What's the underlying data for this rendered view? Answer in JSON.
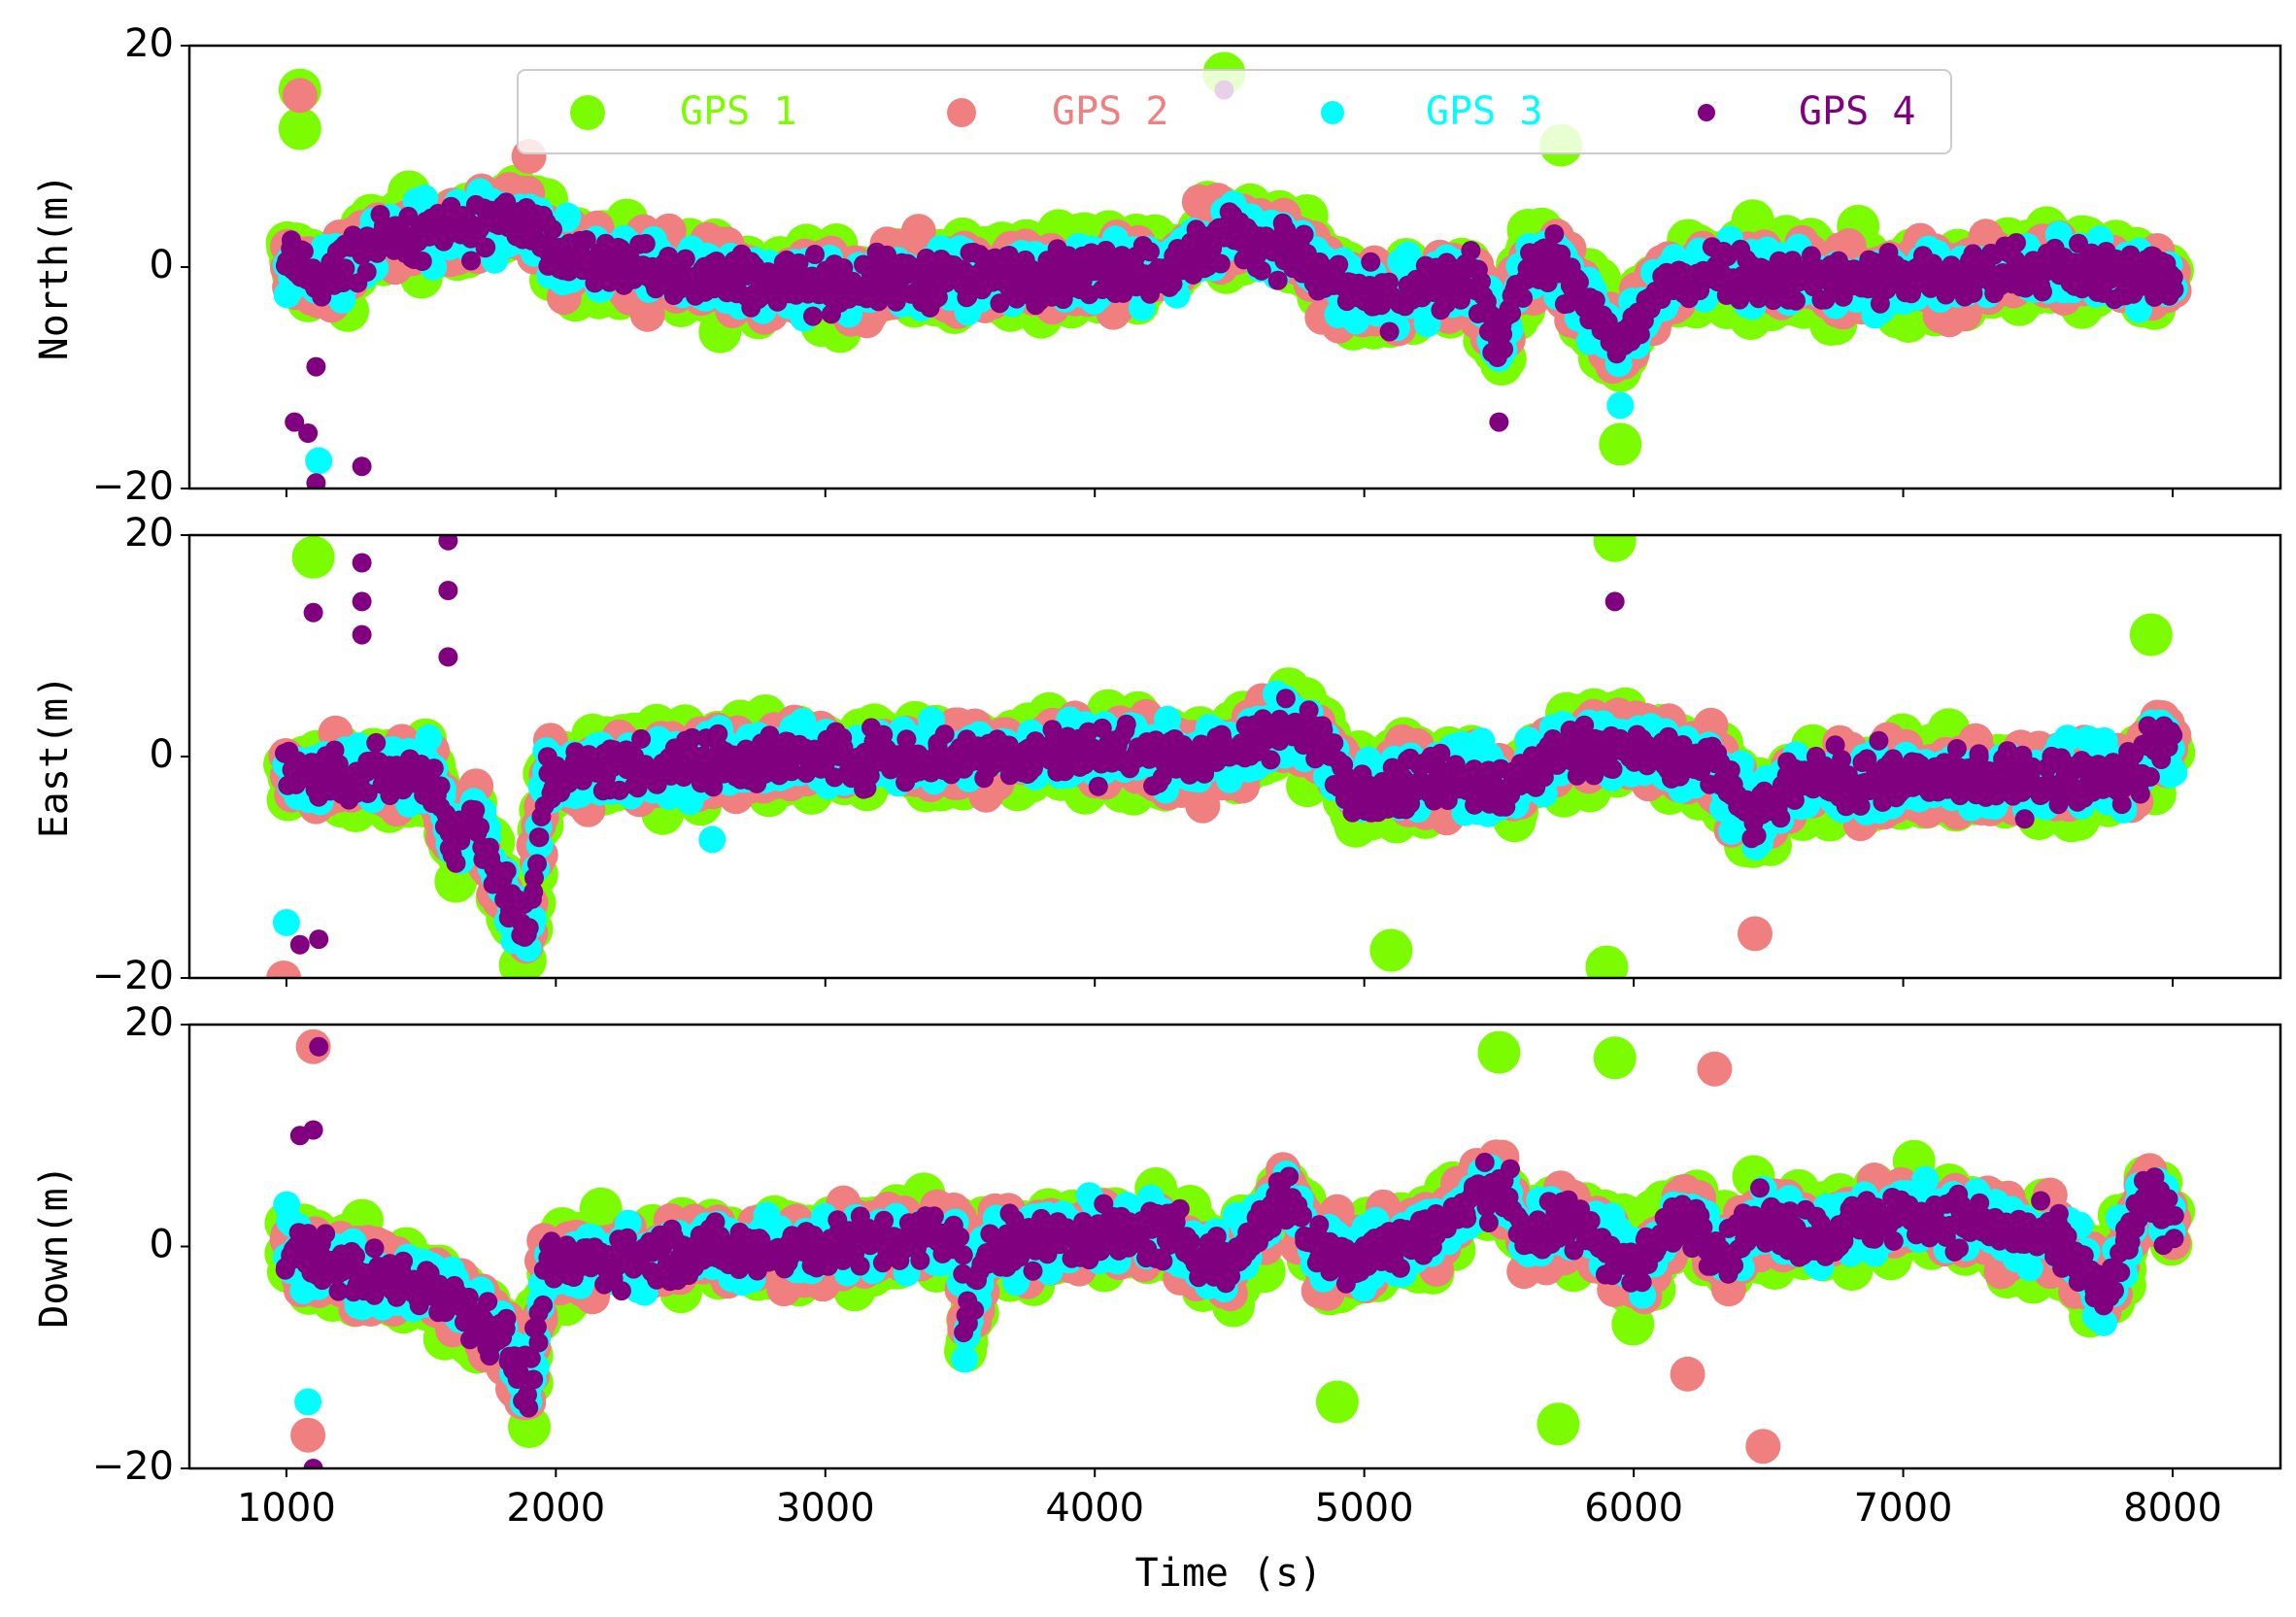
{
  "chart_data": {
    "type": "scatter",
    "xlabel": "Time (s)",
    "xlim": [
      640,
      8400
    ],
    "x_ticks": [
      1000,
      2000,
      3000,
      4000,
      5000,
      6000,
      7000,
      8000
    ],
    "x_tick_labels": [
      "1000",
      "2000",
      "3000",
      "4000",
      "5000",
      "6000",
      "7000",
      "8000"
    ],
    "ylim": [
      -20,
      20
    ],
    "y_ticks": [
      -20,
      0,
      20
    ],
    "y_tick_labels": [
      "−20",
      "0",
      "20"
    ],
    "legend_position": "top-center",
    "series": [
      {
        "name": "GPS 1",
        "color": "#7cfc00",
        "marker_scale": "largest"
      },
      {
        "name": "GPS 2",
        "color": "#f08080",
        "marker_scale": "large"
      },
      {
        "name": "GPS 3",
        "color": "#00ffff",
        "marker_scale": "medium"
      },
      {
        "name": "GPS 4",
        "color": "#800080",
        "marker_scale": "small"
      }
    ],
    "x_range_of_data": [
      1000,
      8000
    ],
    "panels": [
      {
        "ylabel": "North(m)",
        "trend": [
          [
            1000,
            0.5
          ],
          [
            1150,
            -1
          ],
          [
            1300,
            2
          ],
          [
            1450,
            3
          ],
          [
            1600,
            3
          ],
          [
            1800,
            4
          ],
          [
            1900,
            4.5
          ],
          [
            2000,
            1
          ],
          [
            2300,
            0
          ],
          [
            2600,
            -1
          ],
          [
            3000,
            -1.5
          ],
          [
            3500,
            -1
          ],
          [
            4000,
            -0.5
          ],
          [
            4300,
            0
          ],
          [
            4500,
            3
          ],
          [
            4700,
            2
          ],
          [
            4850,
            -1
          ],
          [
            5050,
            -3
          ],
          [
            5250,
            -2
          ],
          [
            5400,
            -1
          ],
          [
            5500,
            -7
          ],
          [
            5580,
            -1
          ],
          [
            5700,
            1
          ],
          [
            5800,
            -3
          ],
          [
            5950,
            -7
          ],
          [
            6100,
            -2
          ],
          [
            6300,
            0
          ],
          [
            6500,
            -1
          ],
          [
            6800,
            -1
          ],
          [
            7200,
            -1
          ],
          [
            7500,
            0
          ],
          [
            8000,
            -1
          ]
        ],
        "spread": 3.5,
        "outliers": [
          {
            "x": 1050,
            "y": 16,
            "series": "GPS 1"
          },
          {
            "x": 1050,
            "y": 15.5,
            "series": "GPS 2"
          },
          {
            "x": 1050,
            "y": 12.5,
            "series": "GPS 1"
          },
          {
            "x": 1030,
            "y": -14,
            "series": "GPS 4"
          },
          {
            "x": 1080,
            "y": -15,
            "series": "GPS 4"
          },
          {
            "x": 1110,
            "y": -9,
            "series": "GPS 4"
          },
          {
            "x": 1120,
            "y": -17.5,
            "series": "GPS 3"
          },
          {
            "x": 1110,
            "y": -19.5,
            "series": "GPS 4"
          },
          {
            "x": 1280,
            "y": -18,
            "series": "GPS 4"
          },
          {
            "x": 4480,
            "y": 17.5,
            "series": "GPS 1"
          },
          {
            "x": 4480,
            "y": 16,
            "series": "GPS 4"
          },
          {
            "x": 5730,
            "y": 11,
            "series": "GPS 1"
          },
          {
            "x": 5500,
            "y": -14,
            "series": "GPS 4"
          },
          {
            "x": 5950,
            "y": -16,
            "series": "GPS 1"
          },
          {
            "x": 5950,
            "y": -12.5,
            "series": "GPS 3"
          },
          {
            "x": 1900,
            "y": 10,
            "series": "GPS 2"
          }
        ]
      },
      {
        "ylabel": "East(m)",
        "trend": [
          [
            1000,
            -1
          ],
          [
            1200,
            -2
          ],
          [
            1400,
            -1.5
          ],
          [
            1550,
            -2
          ],
          [
            1620,
            -8
          ],
          [
            1700,
            -5
          ],
          [
            1800,
            -12
          ],
          [
            1900,
            -16
          ],
          [
            1960,
            -2
          ],
          [
            2200,
            -1
          ],
          [
            2500,
            -0.5
          ],
          [
            3000,
            0
          ],
          [
            3500,
            0
          ],
          [
            4000,
            0.5
          ],
          [
            4500,
            0
          ],
          [
            4700,
            3
          ],
          [
            4850,
            1
          ],
          [
            4950,
            -3
          ],
          [
            5200,
            -2
          ],
          [
            5400,
            -2
          ],
          [
            5550,
            -3
          ],
          [
            5700,
            0
          ],
          [
            5900,
            1
          ],
          [
            6100,
            0
          ],
          [
            6300,
            -1
          ],
          [
            6450,
            -6
          ],
          [
            6600,
            -2
          ],
          [
            6800,
            -2
          ],
          [
            7200,
            -2
          ],
          [
            7600,
            -2
          ],
          [
            7850,
            -2
          ],
          [
            7950,
            2
          ],
          [
            8000,
            1
          ]
        ],
        "spread": 3.5,
        "outliers": [
          {
            "x": 1100,
            "y": 18,
            "series": "GPS 1"
          },
          {
            "x": 1100,
            "y": 13,
            "series": "GPS 4"
          },
          {
            "x": 1280,
            "y": 17.5,
            "series": "GPS 4"
          },
          {
            "x": 1280,
            "y": 14,
            "series": "GPS 4"
          },
          {
            "x": 1280,
            "y": 11,
            "series": "GPS 4"
          },
          {
            "x": 1600,
            "y": 19.5,
            "series": "GPS 4"
          },
          {
            "x": 1600,
            "y": 15,
            "series": "GPS 4"
          },
          {
            "x": 1600,
            "y": 9,
            "series": "GPS 4"
          },
          {
            "x": 1000,
            "y": -15,
            "series": "GPS 3"
          },
          {
            "x": 990,
            "y": -20,
            "series": "GPS 2"
          },
          {
            "x": 1050,
            "y": -17,
            "series": "GPS 4"
          },
          {
            "x": 1120,
            "y": -16.5,
            "series": "GPS 4"
          },
          {
            "x": 5100,
            "y": -17.5,
            "series": "GPS 1"
          },
          {
            "x": 5900,
            "y": -19,
            "series": "GPS 1"
          },
          {
            "x": 5930,
            "y": 19.5,
            "series": "GPS 1"
          },
          {
            "x": 5930,
            "y": 14,
            "series": "GPS 4"
          },
          {
            "x": 6450,
            "y": -16,
            "series": "GPS 2"
          },
          {
            "x": 7920,
            "y": 11,
            "series": "GPS 1"
          },
          {
            "x": 2580,
            "y": -7.5,
            "series": "GPS 3"
          }
        ]
      },
      {
        "ylabel": "Down(m)",
        "trend": [
          [
            1000,
            0
          ],
          [
            1200,
            -2
          ],
          [
            1400,
            -3
          ],
          [
            1600,
            -4
          ],
          [
            1800,
            -8
          ],
          [
            1900,
            -13
          ],
          [
            1960,
            -2
          ],
          [
            2200,
            -1
          ],
          [
            2500,
            -0.5
          ],
          [
            3000,
            0
          ],
          [
            3500,
            1
          ],
          [
            3520,
            -8
          ],
          [
            3600,
            0
          ],
          [
            4000,
            1
          ],
          [
            4300,
            1
          ],
          [
            4500,
            -2
          ],
          [
            4700,
            5
          ],
          [
            4850,
            -1
          ],
          [
            5000,
            -1
          ],
          [
            5300,
            2
          ],
          [
            5500,
            6
          ],
          [
            5600,
            1
          ],
          [
            5800,
            2
          ],
          [
            6000,
            -2
          ],
          [
            6200,
            3
          ],
          [
            6350,
            -1
          ],
          [
            6450,
            2
          ],
          [
            6700,
            1
          ],
          [
            7000,
            3
          ],
          [
            7300,
            2
          ],
          [
            7600,
            0
          ],
          [
            7750,
            -5
          ],
          [
            7900,
            5
          ],
          [
            8000,
            2
          ]
        ],
        "spread": 3.5,
        "outliers": [
          {
            "x": 1100,
            "y": 18,
            "series": "GPS 2"
          },
          {
            "x": 1120,
            "y": 18,
            "series": "GPS 4"
          },
          {
            "x": 1050,
            "y": 10,
            "series": "GPS 4"
          },
          {
            "x": 1100,
            "y": 10.5,
            "series": "GPS 4"
          },
          {
            "x": 1080,
            "y": -14,
            "series": "GPS 3"
          },
          {
            "x": 1080,
            "y": -17,
            "series": "GPS 2"
          },
          {
            "x": 1100,
            "y": -20,
            "series": "GPS 4"
          },
          {
            "x": 5500,
            "y": 17.5,
            "series": "GPS 1"
          },
          {
            "x": 5930,
            "y": 17,
            "series": "GPS 1"
          },
          {
            "x": 6300,
            "y": 16,
            "series": "GPS 2"
          },
          {
            "x": 6480,
            "y": -18,
            "series": "GPS 2"
          },
          {
            "x": 4900,
            "y": -14,
            "series": "GPS 1"
          },
          {
            "x": 6200,
            "y": -11.5,
            "series": "GPS 2"
          },
          {
            "x": 5720,
            "y": -16,
            "series": "GPS 1"
          }
        ]
      }
    ]
  }
}
